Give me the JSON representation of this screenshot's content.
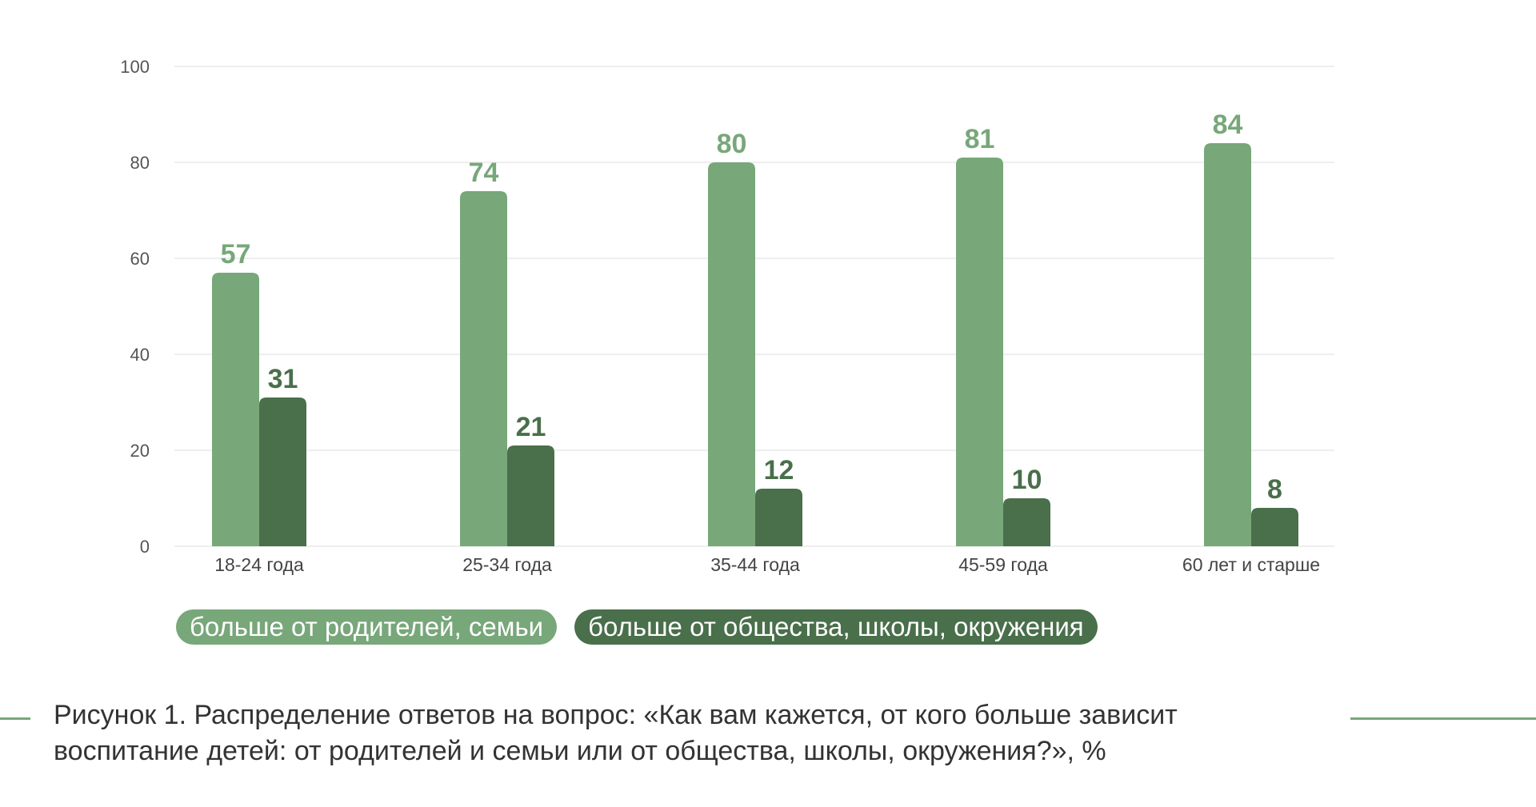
{
  "chart_data": {
    "type": "bar",
    "categories": [
      "18-24 года",
      "25-34 года",
      "35-44 года",
      "45-59 года",
      "60 лет и старше"
    ],
    "series": [
      {
        "name": "больше от родителей, семьи",
        "values": [
          57,
          74,
          80,
          81,
          84
        ],
        "color": "#78a77a"
      },
      {
        "name": "больше от общества, школы, окружения",
        "values": [
          31,
          21,
          12,
          10,
          8
        ],
        "color": "#4a6f4b"
      }
    ],
    "ylim": [
      0,
      100
    ],
    "yticks": [
      0,
      20,
      40,
      60,
      80,
      100
    ],
    "grid": true,
    "legend_position": "bottom-left",
    "title": ""
  },
  "caption": {
    "line1": "Рисунок 1. Распределение ответов на вопрос: «Как вам кажется, от кого больше зависит",
    "line2": "воспитание детей: от родителей и семьи или от общества, школы, окружения?», %"
  },
  "colors": {
    "light_green": "#78a77a",
    "dark_green": "#4a6f4b",
    "gridline": "#e8e8e8",
    "decor_rule": "#78a77a"
  }
}
